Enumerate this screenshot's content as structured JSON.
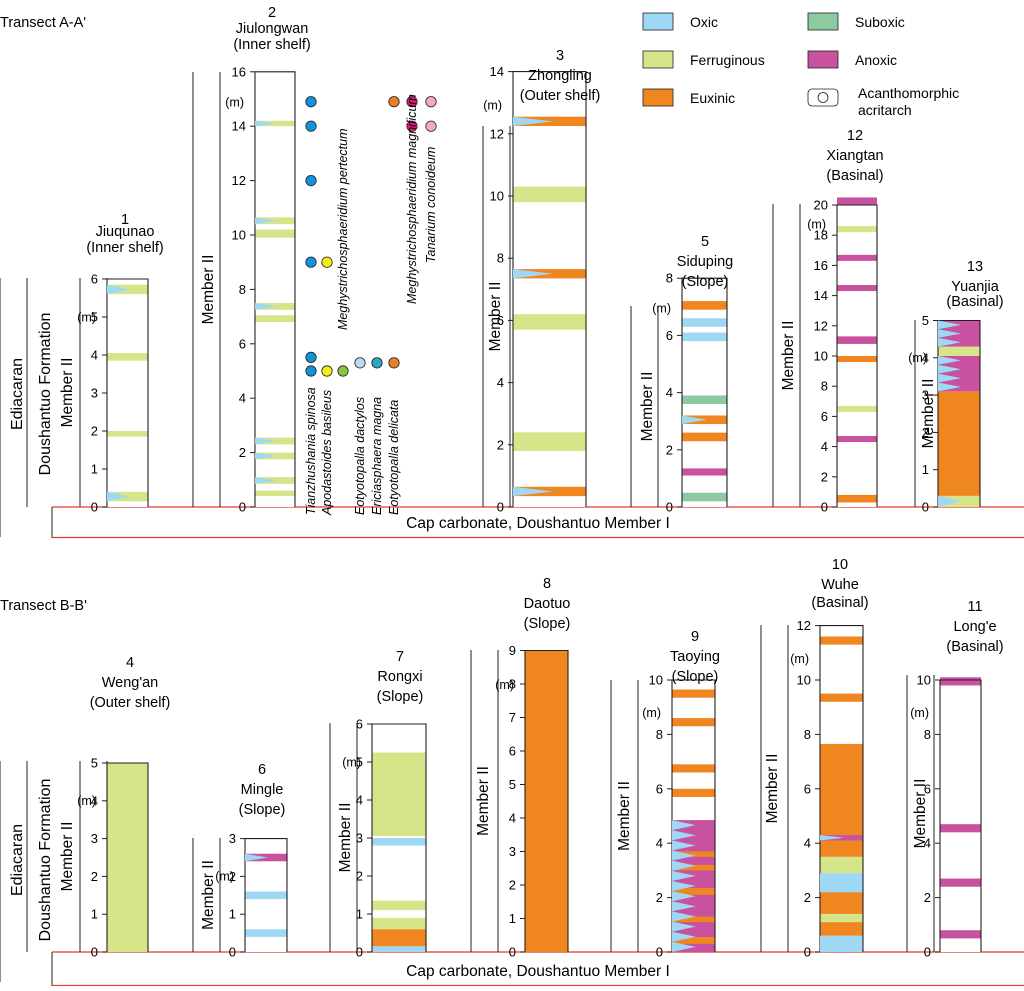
{
  "colors": {
    "oxic": "#9fd8f5",
    "ferruginous": "#d7e58a",
    "euxinic": "#f0861f",
    "suboxic": "#8dcaa1",
    "anoxic": "#c952a0",
    "baseline": "#e53935"
  },
  "legend": [
    {
      "key": "oxic",
      "label": "Oxic",
      "type": "box"
    },
    {
      "key": "ferruginous",
      "label": "Ferruginous",
      "type": "box"
    },
    {
      "key": "euxinic",
      "label": "Euxinic",
      "type": "box"
    },
    {
      "key": "suboxic",
      "label": "Suboxic",
      "type": "box"
    },
    {
      "key": "anoxic",
      "label": "Anoxic",
      "type": "box"
    },
    {
      "key": "acritarch",
      "label1": "Acanthomorphic",
      "label2": "acritarch",
      "type": "circle"
    }
  ],
  "transects": [
    {
      "title": "Transect A-A'",
      "strat": {
        "era": "Ediacaran",
        "formation": "Doushantuo Formation"
      },
      "cap": "Cap carbonate, Doushantuo Member I",
      "sections": [
        {
          "num": "1",
          "name": "Jiuqunao",
          "setting": "(Inner shelf)",
          "member": "Member II",
          "unit": "(m)",
          "max": 6,
          "ticks": [
            0,
            1,
            2,
            3,
            4,
            5,
            6
          ],
          "bands": [
            [
              0.15,
              0.4,
              "ferruginous",
              1
            ],
            [
              1.85,
              2.0,
              "ferruginous",
              0
            ],
            [
              3.85,
              4.05,
              "ferruginous",
              0
            ],
            [
              5.6,
              5.85,
              "ferruginous",
              1
            ]
          ]
        },
        {
          "num": "2",
          "name": "Jiulongwan",
          "setting": "(Inner shelf)",
          "member": "Member II",
          "unit": "(m)",
          "max": 16,
          "ticks": [
            0,
            2,
            4,
            6,
            8,
            10,
            12,
            14,
            16
          ],
          "bands": [
            [
              0.4,
              0.6,
              "ferruginous",
              0
            ],
            [
              0.85,
              1.1,
              "ferruginous",
              1
            ],
            [
              1.75,
              2.0,
              "ferruginous",
              1
            ],
            [
              2.3,
              2.55,
              "ferruginous",
              1
            ],
            [
              6.8,
              7.05,
              "ferruginous",
              0
            ],
            [
              7.25,
              7.5,
              "ferruginous",
              1
            ],
            [
              9.9,
              10.2,
              "ferruginous",
              0
            ],
            [
              10.4,
              10.65,
              "ferruginous",
              1
            ],
            [
              14.0,
              14.2,
              "ferruginous",
              1
            ]
          ]
        },
        {
          "num": "3",
          "name": "Zhongling",
          "setting": "(Outer shelf)",
          "member": "Member II",
          "unit": "(m)",
          "max": 14,
          "ticks": [
            0,
            2,
            4,
            6,
            8,
            10,
            12,
            14
          ],
          "bands": [
            [
              0.35,
              0.65,
              "euxinic",
              1
            ],
            [
              1.8,
              2.4,
              "ferruginous",
              0
            ],
            [
              5.7,
              6.2,
              "ferruginous",
              0
            ],
            [
              7.35,
              7.65,
              "euxinic",
              1
            ],
            [
              9.8,
              10.3,
              "ferruginous",
              0
            ],
            [
              12.25,
              12.55,
              "euxinic",
              1
            ]
          ]
        },
        {
          "num": "5",
          "name": "Siduping",
          "setting": "(Slope)",
          "member": "Member II",
          "unit": "(m)",
          "max": 8,
          "ticks": [
            0,
            2,
            4,
            6,
            8
          ],
          "bands": [
            [
              0.2,
              0.5,
              "suboxic",
              0
            ],
            [
              1.1,
              1.35,
              "anoxic",
              0
            ],
            [
              2.3,
              2.6,
              "euxinic",
              0
            ],
            [
              2.9,
              3.2,
              "euxinic",
              1
            ],
            [
              3.6,
              3.9,
              "suboxic",
              0
            ],
            [
              5.8,
              6.1,
              "oxic",
              0
            ],
            [
              6.3,
              6.6,
              "oxic",
              0
            ],
            [
              6.9,
              7.2,
              "euxinic",
              0
            ]
          ]
        },
        {
          "num": "12",
          "name": "Xiangtan",
          "setting": "(Basinal)",
          "member": "Member II",
          "unit": "(m)",
          "max": 20,
          "ticks": [
            0,
            2,
            4,
            6,
            8,
            10,
            12,
            14,
            16,
            18,
            20
          ],
          "bands": [
            [
              0.3,
              0.8,
              "euxinic",
              0
            ],
            [
              4.3,
              4.7,
              "anoxic",
              0
            ],
            [
              6.3,
              6.7,
              "ferruginous",
              0
            ],
            [
              9.6,
              10.0,
              "euxinic",
              0
            ],
            [
              10.8,
              11.3,
              "anoxic",
              0
            ],
            [
              14.3,
              14.7,
              "anoxic",
              0
            ],
            [
              16.3,
              16.7,
              "anoxic",
              0
            ],
            [
              18.2,
              18.6,
              "ferruginous",
              0
            ],
            [
              20.0,
              20.5,
              "anoxic",
              0
            ]
          ]
        },
        {
          "num": "13",
          "name": "Yuanjia",
          "setting": "(Basinal)",
          "member": "Member II",
          "unit": "(m)",
          "max": 5,
          "ticks": [
            0,
            1,
            2,
            3,
            4,
            5
          ],
          "bands": [
            [
              0,
              0.3,
              "ferruginous",
              1
            ],
            [
              0.3,
              3.1,
              "euxinic",
              0
            ],
            [
              3.1,
              4.05,
              "anoxic",
              1
            ],
            [
              4.05,
              4.3,
              "ferruginous",
              0
            ],
            [
              4.3,
              5,
              "anoxic",
              1
            ]
          ]
        }
      ],
      "acritarchs": {
        "species": [
          {
            "name": "Tianzhushania spinosa",
            "color": "#0f93d9"
          },
          {
            "name": "Apodastoides basileus",
            "color": "#f4ee16"
          },
          {
            "name": "Meghystrichosphaeridium pertectum",
            "color": "#8bc53f"
          },
          {
            "name": "Eotyotopalla dactylos",
            "color": "#b8dcf2"
          },
          {
            "name": "Ericiasphaera magna",
            "color": "#2aa6c2"
          },
          {
            "name": "Eotyotopalla delicata",
            "color": "#e87f22"
          },
          {
            "name": "Meghystrichosphaeridium magnificum",
            "color": "#e6197d"
          },
          {
            "name": "Tanarium conoideum",
            "color": "#f4a9c8"
          }
        ],
        "occurrences": [
          [
            0,
            5
          ],
          [
            0,
            5.5
          ],
          [
            0,
            9
          ],
          [
            0,
            12
          ],
          [
            0,
            14
          ],
          [
            0,
            14.9
          ],
          [
            1,
            5
          ],
          [
            1,
            9
          ],
          [
            2,
            5
          ],
          [
            3,
            5.3
          ],
          [
            4,
            5.3
          ],
          [
            5,
            5.3
          ],
          [
            5,
            14.9
          ],
          [
            6,
            14
          ],
          [
            6,
            14.9
          ],
          [
            7,
            14
          ],
          [
            7,
            14.9
          ]
        ]
      }
    },
    {
      "title": "Transect B-B'",
      "strat": {
        "era": "Ediacaran",
        "formation": "Doushantuo Formation"
      },
      "cap": "Cap carbonate, Doushantuo Member I",
      "sections": [
        {
          "num": "4",
          "name": "Weng'an",
          "setting": "(Outer shelf)",
          "member": "Member II",
          "unit": "(m)",
          "max": 5,
          "ticks": [
            0,
            1,
            2,
            3,
            4,
            5
          ],
          "bands": [
            [
              0,
              5,
              "ferruginous",
              0
            ]
          ]
        },
        {
          "num": "6",
          "name": "Mingle",
          "setting": "(Slope)",
          "member": "Member II",
          "unit": "(m)",
          "max": 3,
          "ticks": [
            0,
            1,
            2,
            3
          ],
          "bands": [
            [
              0.4,
              0.6,
              "oxic",
              0
            ],
            [
              1.4,
              1.6,
              "oxic",
              0
            ],
            [
              2.4,
              2.6,
              "anoxic",
              1
            ]
          ]
        },
        {
          "num": "7",
          "name": "Rongxi",
          "setting": "(Slope)",
          "member": "Member II",
          "unit": "(m)",
          "max": 6,
          "ticks": [
            0,
            1,
            2,
            3,
            4,
            5,
            6
          ],
          "bands": [
            [
              0,
              0.15,
              "oxic",
              0
            ],
            [
              0.15,
              0.6,
              "euxinic",
              0
            ],
            [
              0.6,
              0.9,
              "ferruginous",
              0
            ],
            [
              1.1,
              1.35,
              "ferruginous",
              0
            ],
            [
              2.8,
              3.0,
              "oxic",
              0
            ],
            [
              3.05,
              5.25,
              "ferruginous",
              0
            ]
          ]
        },
        {
          "num": "8",
          "name": "Daotuo",
          "setting": "(Slope)",
          "member": "Member II",
          "unit": "(m)",
          "max": 9,
          "ticks": [
            0,
            1,
            2,
            3,
            4,
            5,
            6,
            7,
            8,
            9
          ],
          "bands": [
            [
              0,
              9,
              "euxinic",
              0
            ]
          ]
        },
        {
          "num": "9",
          "name": "Taoying",
          "setting": "(Slope)",
          "member": "Member II",
          "unit": "(m)",
          "max": 10,
          "ticks": [
            0,
            2,
            4,
            6,
            8,
            10
          ],
          "bands": [
            [
              0,
              4.85,
              "anoxic",
              1
            ],
            [
              0.3,
              0.55,
              "euxinic",
              0
            ],
            [
              1.1,
              1.3,
              "euxinic",
              0
            ],
            [
              2.1,
              2.35,
              "euxinic",
              0
            ],
            [
              3.0,
              3.2,
              "euxinic",
              0
            ],
            [
              3.5,
              3.7,
              "euxinic",
              0
            ],
            [
              5.7,
              6.0,
              "euxinic",
              0
            ],
            [
              6.6,
              6.9,
              "euxinic",
              0
            ],
            [
              8.3,
              8.6,
              "euxinic",
              0
            ],
            [
              9.35,
              9.65,
              "euxinic",
              0
            ]
          ]
        },
        {
          "num": "10",
          "name": "Wuhe",
          "setting": "(Basinal)",
          "member": "Member II",
          "unit": "(m)",
          "max": 12,
          "ticks": [
            0,
            2,
            4,
            6,
            8,
            10,
            12
          ],
          "bands": [
            [
              0,
              0.6,
              "oxic",
              1
            ],
            [
              0.6,
              1.1,
              "euxinic",
              0
            ],
            [
              1.1,
              1.4,
              "ferruginous",
              0
            ],
            [
              1.4,
              2.2,
              "euxinic",
              0
            ],
            [
              2.2,
              2.9,
              "oxic",
              1
            ],
            [
              2.9,
              3.5,
              "ferruginous",
              0
            ],
            [
              3.5,
              4.1,
              "euxinic",
              0
            ],
            [
              4.1,
              4.3,
              "anoxic",
              1
            ],
            [
              4.3,
              7.65,
              "euxinic",
              0
            ],
            [
              9.2,
              9.5,
              "euxinic",
              0
            ],
            [
              11.3,
              11.6,
              "euxinic",
              0
            ]
          ]
        },
        {
          "num": "11",
          "name": "Long'e",
          "setting": "(Basinal)",
          "member": "Member II",
          "unit": "(m)",
          "max": 10,
          "ticks": [
            0,
            2,
            4,
            6,
            8,
            10
          ],
          "bands": [
            [
              0.5,
              0.8,
              "anoxic",
              0
            ],
            [
              2.4,
              2.7,
              "anoxic",
              0
            ],
            [
              4.4,
              4.7,
              "anoxic",
              0
            ],
            [
              9.8,
              10.1,
              "anoxic",
              0
            ]
          ]
        }
      ]
    }
  ]
}
